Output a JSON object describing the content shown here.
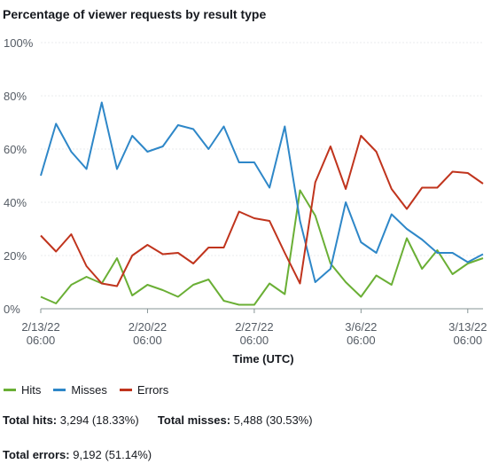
{
  "title": "Percentage of viewer requests by result type",
  "colors": {
    "hits": "#6aaf35",
    "misses": "#2e87c8",
    "errors": "#c0341d",
    "grid": "#e9ebed"
  },
  "chart_data": {
    "type": "line",
    "xlabel": "Time (UTC)",
    "ylabel": "",
    "ylim": [
      0,
      100
    ],
    "y_ticks": [
      "0%",
      "20%",
      "40%",
      "60%",
      "80%",
      "100%"
    ],
    "x_ticks": [
      {
        "date": "2/13/22",
        "time": "06:00"
      },
      {
        "date": "2/20/22",
        "time": "06:00"
      },
      {
        "date": "2/27/22",
        "time": "06:00"
      },
      {
        "date": "3/6/22",
        "time": "06:00"
      },
      {
        "date": "3/13/22",
        "time": "06:00"
      }
    ],
    "x": [
      "2/13/22 06:00",
      "2/14/22 06:00",
      "2/15/22 06:00",
      "2/16/22 06:00",
      "2/17/22 06:00",
      "2/18/22 06:00",
      "2/19/22 06:00",
      "2/20/22 06:00",
      "2/21/22 06:00",
      "2/22/22 06:00",
      "2/23/22 06:00",
      "2/24/22 06:00",
      "2/25/22 06:00",
      "2/26/22 06:00",
      "2/27/22 06:00",
      "2/28/22 06:00",
      "3/1/22 06:00",
      "3/2/22 06:00",
      "3/3/22 06:00",
      "3/4/22 06:00",
      "3/5/22 06:00",
      "3/6/22 06:00",
      "3/7/22 06:00",
      "3/8/22 06:00",
      "3/9/22 06:00",
      "3/10/22 06:00",
      "3/11/22 06:00",
      "3/12/22 06:00",
      "3/13/22 06:00",
      "3/14/22 06:00"
    ],
    "series": [
      {
        "name": "Hits",
        "color_key": "hits",
        "x_index": [
          0,
          1,
          2,
          3,
          4,
          5,
          6,
          7,
          8,
          9,
          10,
          11,
          12,
          13,
          14,
          15,
          16,
          17,
          18,
          19,
          20,
          21,
          22,
          23,
          24,
          25,
          26,
          27,
          28,
          29
        ],
        "values": [
          4.5,
          2,
          9,
          12,
          9.5,
          19,
          5,
          9,
          7,
          4.5,
          9,
          11,
          3,
          1.5,
          1.5,
          9.5,
          5.5,
          44.5,
          35,
          17,
          10,
          4.5,
          12.5,
          9,
          26.5,
          15,
          22,
          13,
          17,
          19
        ]
      },
      {
        "name": "Misses",
        "color_key": "misses",
        "x_index": [
          0,
          1,
          2,
          3,
          4,
          5,
          6,
          7,
          8,
          9,
          10,
          11,
          12,
          13,
          14,
          15,
          16,
          17,
          18,
          19,
          20,
          21,
          22,
          23,
          24,
          25,
          26,
          27,
          28,
          29
        ],
        "values": [
          50,
          69.5,
          59,
          52.5,
          77.5,
          52.5,
          65,
          59,
          61,
          69,
          67.5,
          60,
          68.5,
          55,
          55,
          45.5,
          68.5,
          33,
          10,
          15,
          40,
          25,
          21,
          35.5,
          30,
          26,
          21,
          21,
          17.5,
          20.5
        ]
      },
      {
        "name": "Errors",
        "color_key": "errors",
        "x_index": [
          0,
          1,
          2,
          3,
          4,
          5,
          6,
          7,
          8,
          9,
          10,
          11,
          12,
          13,
          14,
          15,
          16,
          17,
          18,
          19,
          20,
          21,
          22,
          23,
          24,
          25,
          26,
          27,
          28,
          29
        ],
        "values": [
          27.5,
          21.5,
          28,
          16,
          9.5,
          8.5,
          20,
          24,
          20.5,
          21,
          17,
          23,
          23,
          36.5,
          34,
          33,
          21,
          9.5,
          47.5,
          61,
          45,
          65,
          59,
          45,
          37.5,
          45.5,
          45.5,
          51.5,
          51,
          47
        ]
      }
    ]
  },
  "legend": [
    {
      "label": "Hits",
      "color_key": "hits"
    },
    {
      "label": "Misses",
      "color_key": "misses"
    },
    {
      "label": "Errors",
      "color_key": "errors"
    }
  ],
  "totals": {
    "hits_label": "Total hits:",
    "hits_value": "3,294 (18.33%)",
    "misses_label": "Total misses:",
    "misses_value": "5,488 (30.53%)",
    "errors_label": "Total errors:",
    "errors_value": "9,192 (51.14%)"
  }
}
